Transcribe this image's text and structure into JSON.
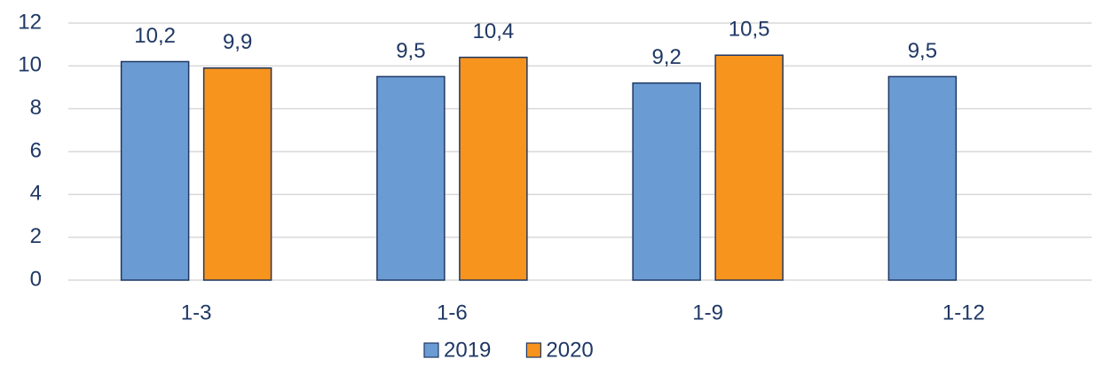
{
  "chart_data": {
    "type": "bar",
    "categories": [
      "1-3",
      "1-6",
      "1-9",
      "1-12"
    ],
    "series": [
      {
        "name": "2019",
        "color": "#6b9bd3",
        "values": [
          10.2,
          9.5,
          9.2,
          9.5
        ],
        "value_labels": [
          "10,2",
          "9,5",
          "9,2",
          "9,5"
        ]
      },
      {
        "name": "2020",
        "color": "#f7941d",
        "values": [
          9.9,
          10.4,
          10.5,
          null
        ],
        "value_labels": [
          "9,9",
          "10,4",
          "10,5",
          null
        ]
      }
    ],
    "ylim": [
      0,
      12
    ],
    "yticks": [
      0,
      2,
      4,
      6,
      8,
      10,
      12
    ],
    "grid": true,
    "legend": "bottom"
  }
}
